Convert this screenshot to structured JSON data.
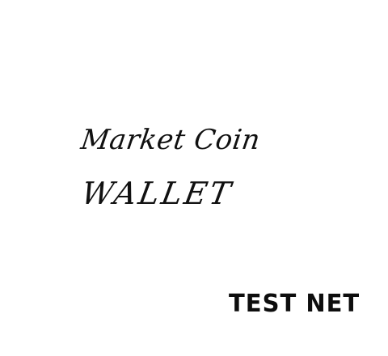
{
  "splash": {
    "title_line_1": "Market Coin",
    "title_line_2": "WALLET",
    "network_label": "TEST NET"
  },
  "colors": {
    "background": "#ffffff",
    "text": "#111111"
  }
}
